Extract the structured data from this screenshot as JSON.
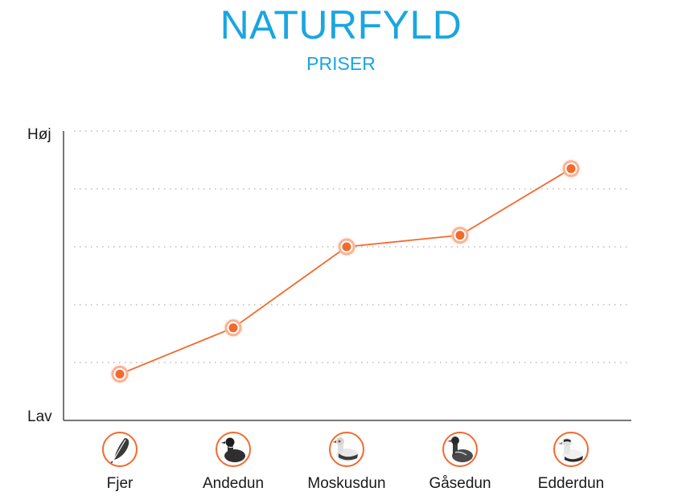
{
  "title": "NATURFYLD",
  "subtitle": "PRISER",
  "colors": {
    "accent_blue": "#1aa6e0",
    "line_orange": "#f26a2e",
    "grid": "#9a9a9a",
    "axis": "#4a4a4a"
  },
  "chart_data": {
    "type": "line",
    "title": "NATURFYLD",
    "subtitle": "PRISER",
    "categories": [
      "Fjer",
      "Andedun",
      "Moskusdun",
      "Gåsedun",
      "Edderdun"
    ],
    "series": [
      {
        "values": [
          0.16,
          0.32,
          0.6,
          0.64,
          0.87
        ]
      }
    ],
    "y_tick_labels": {
      "top": "Høj",
      "bottom": "Lav"
    },
    "ylim": [
      0,
      1
    ],
    "grid": "horizontal dotted",
    "legend": "none",
    "category_icons": [
      "feather-icon",
      "duck-icon",
      "muscovy-duck-icon",
      "goose-icon",
      "eider-duck-icon"
    ]
  }
}
